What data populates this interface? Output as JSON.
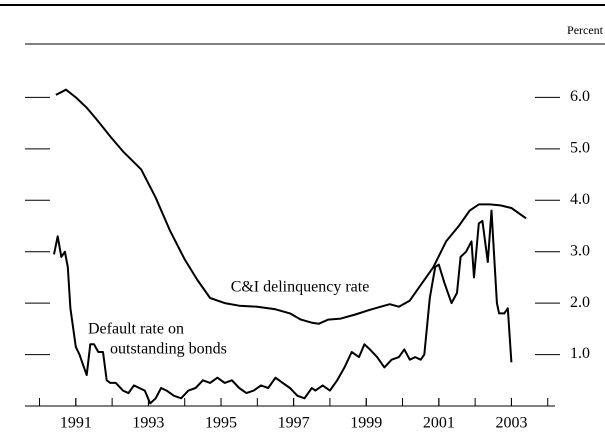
{
  "chart_data": {
    "type": "line",
    "y_axis_label": "Percent",
    "annotations": [
      "C&I delinquency rate",
      "Default rate on",
      "outstanding bonds"
    ],
    "xlim": [
      1989.6,
      2004.2
    ],
    "xticks": [
      1991,
      1993,
      1995,
      1997,
      1999,
      2001,
      2003
    ],
    "xminor_ticks": [
      1990,
      1991,
      1992,
      1993,
      1994,
      1995,
      1996,
      1997,
      1998,
      1999,
      2000,
      2001,
      2002,
      2003,
      2004
    ],
    "ylim": [
      0,
      7
    ],
    "yticks": [
      {
        "value": 1,
        "label": "1.0"
      },
      {
        "value": 2,
        "label": "2.0"
      },
      {
        "value": 3,
        "label": "3.0"
      },
      {
        "value": 4,
        "label": "4.0"
      },
      {
        "value": 5,
        "label": "5.0"
      },
      {
        "value": 6,
        "label": "6.0"
      }
    ],
    "series": [
      {
        "name": "C&I delinquency rate",
        "color": "#000000",
        "x": [
          1990.45,
          1990.73,
          1991.0,
          1991.3,
          1991.6,
          1991.96,
          1992.3,
          1992.8,
          1993.2,
          1993.6,
          1994.0,
          1994.35,
          1994.7,
          1995.1,
          1995.5,
          1996.0,
          1996.5,
          1996.9,
          1997.2,
          1997.5,
          1997.7,
          1997.95,
          1998.3,
          1998.7,
          1999.1,
          1999.4,
          1999.65,
          1999.9,
          2000.2,
          2000.5,
          2000.85,
          2001.2,
          2001.55,
          2001.85,
          2002.1,
          2002.4,
          2002.7,
          2003.0,
          2003.4
        ],
        "values": [
          6.05,
          6.15,
          6.0,
          5.8,
          5.55,
          5.23,
          4.95,
          4.6,
          4.05,
          3.4,
          2.85,
          2.45,
          2.1,
          2.0,
          1.95,
          1.93,
          1.88,
          1.8,
          1.68,
          1.62,
          1.6,
          1.68,
          1.7,
          1.78,
          1.87,
          1.93,
          1.98,
          1.93,
          2.05,
          2.35,
          2.7,
          3.2,
          3.5,
          3.8,
          3.92,
          3.92,
          3.9,
          3.85,
          3.65
        ]
      },
      {
        "name": "Default rate on outstanding bonds",
        "color": "#000000",
        "x": [
          1990.4,
          1990.5,
          1990.6,
          1990.7,
          1990.78,
          1990.85,
          1991.0,
          1991.1,
          1991.2,
          1991.3,
          1991.4,
          1991.5,
          1991.62,
          1991.75,
          1991.85,
          1991.95,
          1992.1,
          1992.3,
          1992.45,
          1992.6,
          1992.75,
          1992.9,
          1993.05,
          1993.2,
          1993.35,
          1993.5,
          1993.7,
          1993.9,
          1994.1,
          1994.3,
          1994.5,
          1994.7,
          1994.9,
          1995.1,
          1995.3,
          1995.5,
          1995.7,
          1995.9,
          1996.1,
          1996.3,
          1996.5,
          1996.7,
          1996.9,
          1997.1,
          1997.3,
          1997.5,
          1997.6,
          1997.8,
          1998.0,
          1998.2,
          1998.4,
          1998.6,
          1998.8,
          1998.95,
          1999.1,
          1999.3,
          1999.5,
          1999.7,
          1999.9,
          2000.05,
          2000.2,
          2000.35,
          2000.5,
          2000.6,
          2000.75,
          2000.9,
          2001.0,
          2001.15,
          2001.35,
          2001.5,
          2001.6,
          2001.75,
          2001.9,
          2001.97,
          2002.1,
          2002.2,
          2002.35,
          2002.45,
          2002.6,
          2002.66,
          2002.8,
          2002.9,
          2003.0
        ],
        "values": [
          2.95,
          3.3,
          2.9,
          3.0,
          2.7,
          1.9,
          1.15,
          1.0,
          0.8,
          0.6,
          1.2,
          1.2,
          1.05,
          1.05,
          0.5,
          0.45,
          0.45,
          0.3,
          0.25,
          0.4,
          0.35,
          0.3,
          0.05,
          0.15,
          0.35,
          0.3,
          0.2,
          0.15,
          0.3,
          0.35,
          0.5,
          0.45,
          0.55,
          0.45,
          0.5,
          0.35,
          0.25,
          0.3,
          0.4,
          0.35,
          0.55,
          0.45,
          0.35,
          0.2,
          0.15,
          0.35,
          0.3,
          0.4,
          0.3,
          0.5,
          0.75,
          1.05,
          0.95,
          1.2,
          1.1,
          0.95,
          0.75,
          0.9,
          0.95,
          1.1,
          0.9,
          0.95,
          0.9,
          1.0,
          2.1,
          2.7,
          2.75,
          2.4,
          2.0,
          2.2,
          2.9,
          3.0,
          3.2,
          2.5,
          3.55,
          3.6,
          2.8,
          3.8,
          2.0,
          1.8,
          1.8,
          1.9,
          0.85
        ]
      }
    ]
  }
}
